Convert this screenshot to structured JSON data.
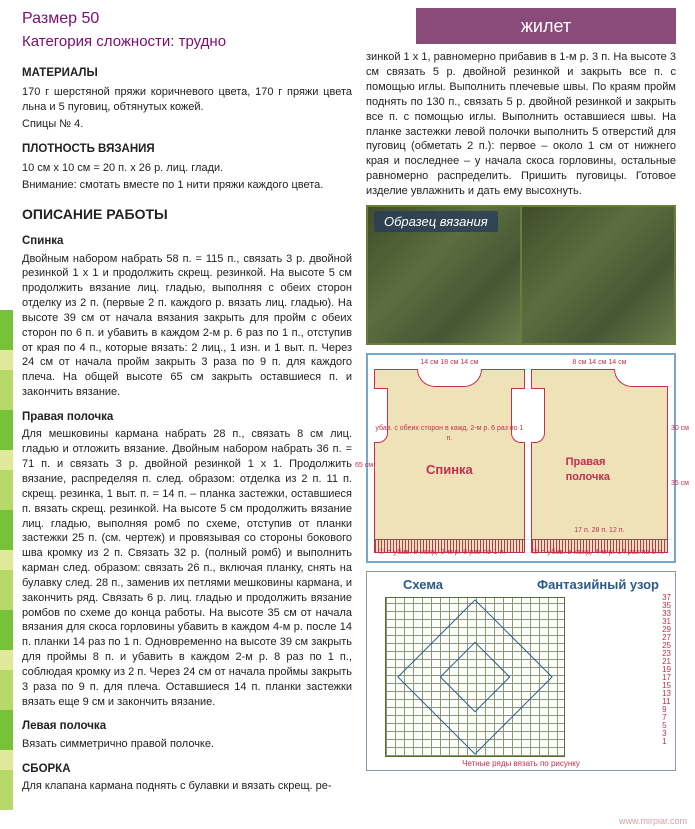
{
  "header": {
    "size_label": "Размер 50",
    "difficulty_label": "Категория сложности: трудно",
    "tab_title": "жилет"
  },
  "materials": {
    "title": "МАТЕРИАЛЫ",
    "text1": "170 г шерстяной пряжи коричневого цвета, 170 г пряжи цвета льна и 5 пуговиц, обтянутых кожей.",
    "text2": "Спицы № 4."
  },
  "gauge": {
    "title": "ПЛОТНОСТЬ ВЯЗАНИЯ",
    "text1": "10 см x 10 см = 20 п. x 26 р. лиц. глади.",
    "text2": "Внимание: смотать вместе по 1 нити пряжи каждого цвета."
  },
  "work": {
    "title": "ОПИСАНИЕ РАБОТЫ"
  },
  "back": {
    "title": "Спинка",
    "text": "Двойным набором набрать 58 п. = 115 п., связать 3 р. двойной резинкой 1 x 1 и продолжить скрещ. резинкой. На высоте 5 см продолжить вязание лиц. гладью, выполняя с обеих сторон отделку из 2 п. (первые 2 п. каждого р. вязать лиц. гладью). На высоте 39 см от начала вязания закрыть для пройм с обеих сторон по 6 п. и убавить в каждом 2-м р. 6 раз по 1 п., отступив от края по 4 п., которые вязать: 2 лиц., 1 изн. и 1 выт. п. Через 24 см от начала пройм закрыть 3 раза по 9 п. для каждого плеча. На общей высоте 65 см закрыть оставшиеся п. и закончить вязание."
  },
  "front_right": {
    "title": "Правая полочка",
    "text": "Для мешковины кармана набрать 28 п., связать 8 см лиц. гладью и отложить вязание. Двойным набором набрать 36 п. = 71 п. и связать 3 р. двойной резинкой 1 x 1. Продолжить вязание, распределяя п. след. образом: отделка из 2 п. 11 п. скрещ. резинка, 1 выт. п. = 14 п. – планка застежки, оставшиеся п. вязать скрещ. резинкой. На высоте 5 см продолжить вязание лиц. гладью, выполняя ромб по схеме, отступив от планки застежки 25 п. (см. чертеж) и провязывая со стороны бокового шва кромку из 2 п. Связать 32 р. (полный ромб) и выполнить карман след. образом: связать 26 п., включая планку, снять на булавку след. 28 п., заменив их петлями мешковины кармана, и закончить ряд. Связать 6 р. лиц. гладью и продолжить вязание ромбов по схеме до конца работы. На высоте 35 см от начала вязания для скоса горловины убавить в каждом 4-м р. после 14 п. планки 14 раз по 1 п. Одновременно на высоте 39 см закрыть для проймы 8 п. и убавить в каждом 2-м р. 8 раз по 1 п., соблюдая кромку из 2 п. Через 24 см от начала проймы закрыть 3 раза по 9 п. для плеча. Оставшиеся 14 п. планки застежки вязать еще 9 см и закончить вязание."
  },
  "front_left": {
    "title": "Левая полочка",
    "text": "Вязать симметрично правой полочке."
  },
  "assembly": {
    "title": "СБОРКА",
    "text_left": "Для клапана кармана поднять с булавки и вязать скрещ. ре-",
    "text_right": "зинкой 1 x 1, равномерно прибавив в 1-м р. 3 п. На высоте 3 см связать 5 р. двойной резинкой и закрыть все п. с помощью иглы. Выполнить плечевые швы. По краям пройм поднять по 130 п., связать 5 р. двойной резинкой и закрыть все п. с помощью иглы. Выполнить оставшиеся швы. На планке застежки левой полочки выполнить 5 отверстий для пуговиц (обметать 2 п.): первое – около 1 см от нижнего края и последнее – у начала скоса горловины, остальные равномерно распределить. Пришить пуговицы. Готовое изделие увлажнить и дать ему высохнуть."
  },
  "sample": {
    "label": "Образец вязания"
  },
  "schematic": {
    "back_label": "Спинка",
    "front_label": "Правая полочка",
    "dims_top_back": "14 см   18 см   14 см",
    "dims_top_front": "8 см  14 см  14 см",
    "h_left": "5,5 см",
    "h_arm": "9 см",
    "h_total": "65 см",
    "w_back": "37 п.",
    "note_back": "убав. с обеих сторон в кажд. 2-м р. 6 раз по 1 п.",
    "h_front_top": "9 см",
    "h_front_arm": "24 см",
    "h_front_mid": "30 см",
    "h_front_bot": "35 см",
    "w_front": "17 п.  28 п.  12 п.",
    "legend1": "① = убав. в кажд. 2-м р. 8 раз по 1 п.",
    "legend2": "② = убав. в кажд. 4-м р. 14 раз по 1 п.",
    "cast_back": "← 57 см - 58 п. дв. н. (= 115 п.) →",
    "cast_front": "← 36 см - 36 п. дв. н. (= 71 п.) →"
  },
  "chart": {
    "title_left": "Схема",
    "title_right": "Фантазийный узор",
    "rows": [
      "37",
      "35",
      "33",
      "31",
      "29",
      "27",
      "25",
      "23",
      "21",
      "19",
      "17",
      "15",
      "13",
      "11",
      "9",
      "7",
      "5",
      "3",
      "1"
    ],
    "footer": "Четные ряды вязать по рисунку"
  },
  "watermark": "www.mirpiar.com"
}
